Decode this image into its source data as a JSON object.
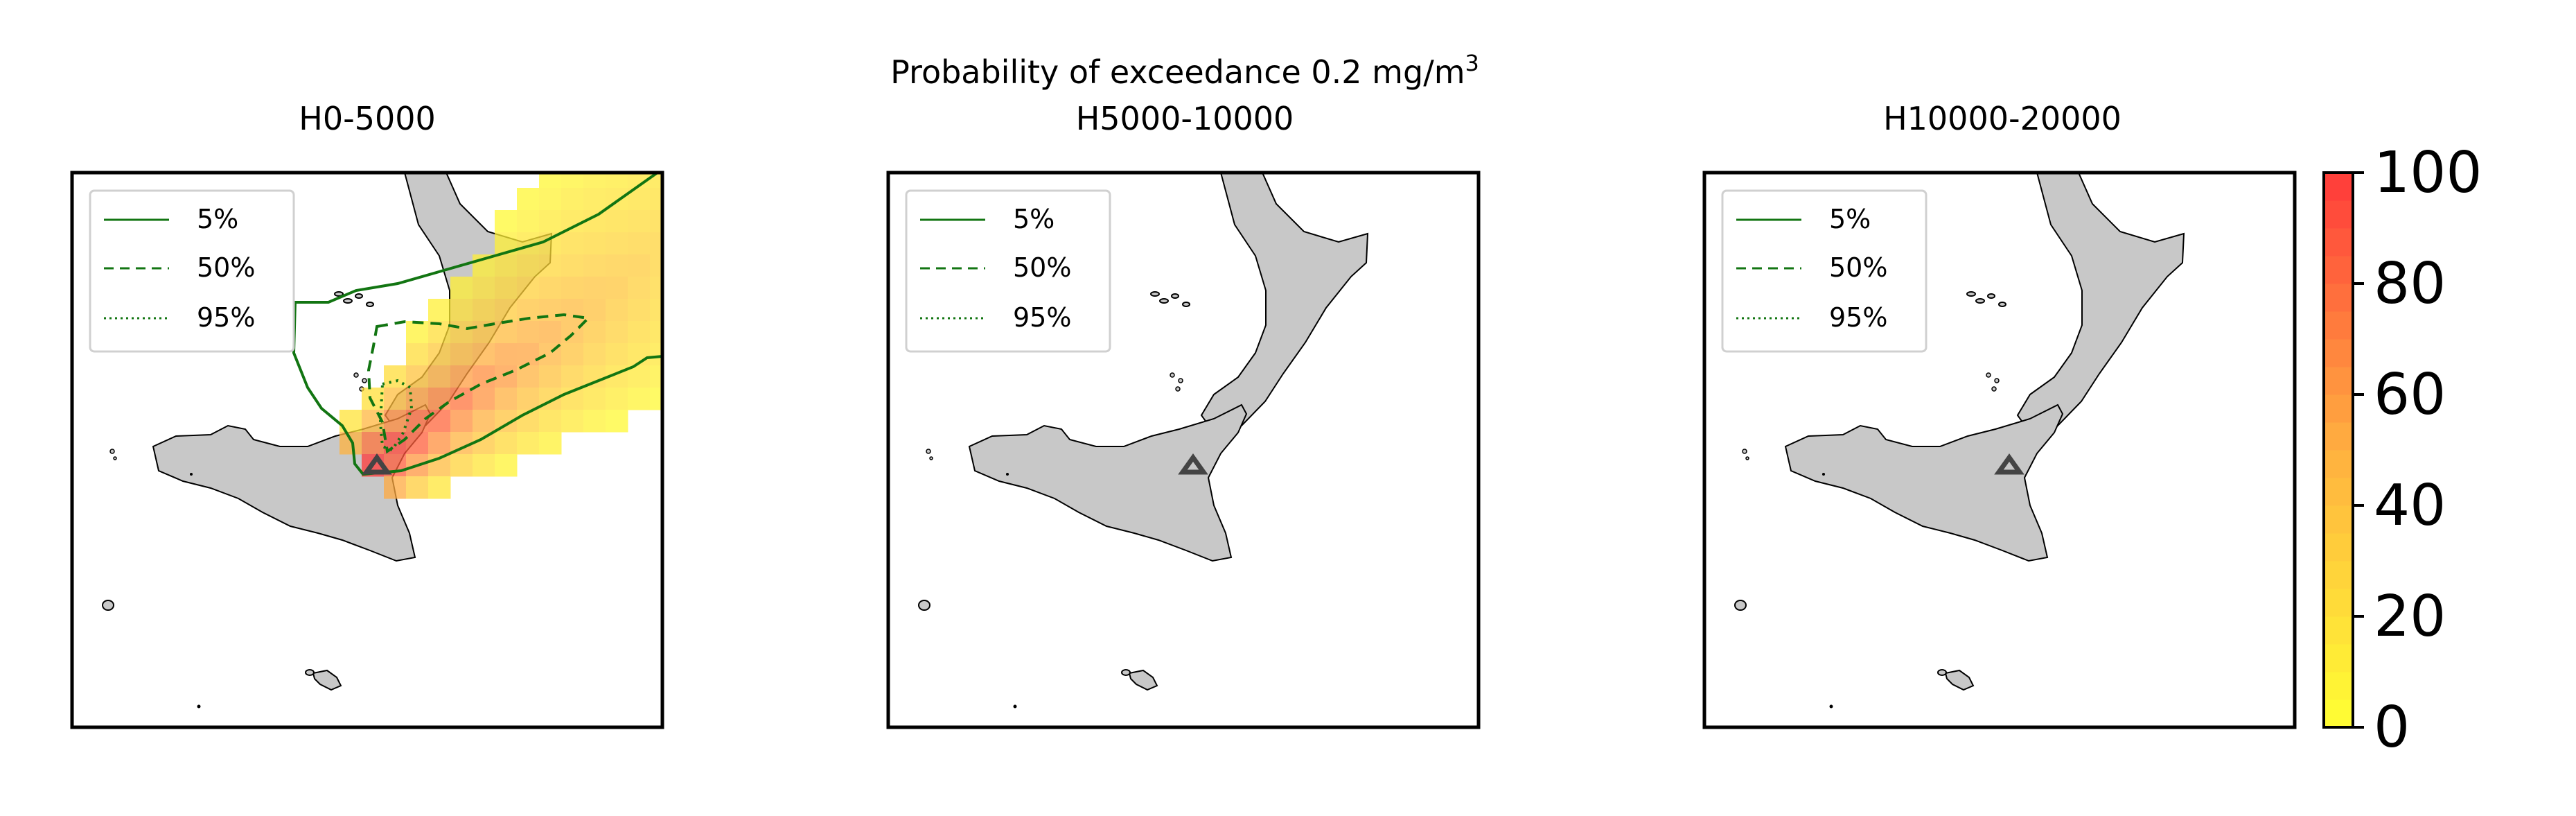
{
  "figure": {
    "suptitle_main": "Probability of exceedance 0.2 mg/m",
    "suptitle_sup": "3"
  },
  "panels": [
    {
      "title": "H0-5000",
      "has_plume": true
    },
    {
      "title": "H5000-10000",
      "has_plume": false
    },
    {
      "title": "H10000-20000",
      "has_plume": false
    }
  ],
  "legend": [
    {
      "label": "5%",
      "style": "solid"
    },
    {
      "label": "50%",
      "style": "dashed"
    },
    {
      "label": "95%",
      "style": "dotted"
    }
  ],
  "colorbar": {
    "ticks": [
      "0",
      "20",
      "40",
      "60",
      "80",
      "100"
    ],
    "range": [
      0,
      100
    ],
    "colors": {
      "low": "#ffff33",
      "mid": "#ffb040",
      "high": "#ff3a3a"
    }
  },
  "colors": {
    "land": "#c8c8c8",
    "contour": "#127512",
    "volcano": "#444444"
  },
  "icons": {
    "volcano": "triangle-icon"
  }
}
